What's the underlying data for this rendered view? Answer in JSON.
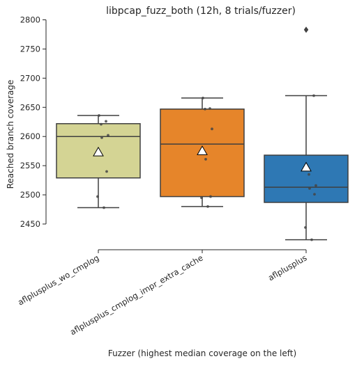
{
  "chart_data": {
    "type": "box",
    "title": "libpcap_fuzz_both (12h, 8 trials/fuzzer)",
    "xlabel": "Fuzzer (highest median coverage on the left)",
    "ylabel": "Reached branch coverage",
    "ylim": [
      2425,
      2800
    ],
    "yticks": [
      2450,
      2500,
      2550,
      2600,
      2650,
      2700,
      2750,
      2800
    ],
    "grid": false,
    "categories": [
      "aflplusplus_wo_cmplog",
      "aflplusplus_cmplog_impr_extra_cache",
      "aflplusplus"
    ],
    "boxes": [
      {
        "name": "aflplusplus_wo_cmplog",
        "color": "#d4d494",
        "whisker_low": 2478,
        "q1": 2529,
        "median": 2600,
        "q3": 2622,
        "whisker_high": 2636,
        "mean": 2573,
        "outliers": [],
        "points": [
          2636,
          2626,
          2621,
          2602,
          2598,
          2540,
          2497,
          2478
        ]
      },
      {
        "name": "aflplusplus_cmplog_impr_extra_cache",
        "color": "#e6852a",
        "whisker_low": 2480,
        "q1": 2497,
        "median": 2587,
        "q3": 2647,
        "whisker_high": 2666,
        "mean": 2575,
        "outliers": [],
        "points": [
          2666,
          2648,
          2647,
          2613,
          2561,
          2497,
          2495,
          2480
        ]
      },
      {
        "name": "aflplusplus",
        "color": "#2e78b4",
        "whisker_low": 2423,
        "q1": 2487,
        "median": 2513,
        "q3": 2568,
        "whisker_high": 2670,
        "mean": 2547,
        "outliers": [
          2783
        ],
        "points": [
          2783,
          2670,
          2535,
          2516,
          2511,
          2501,
          2444,
          2423
        ]
      }
    ]
  }
}
